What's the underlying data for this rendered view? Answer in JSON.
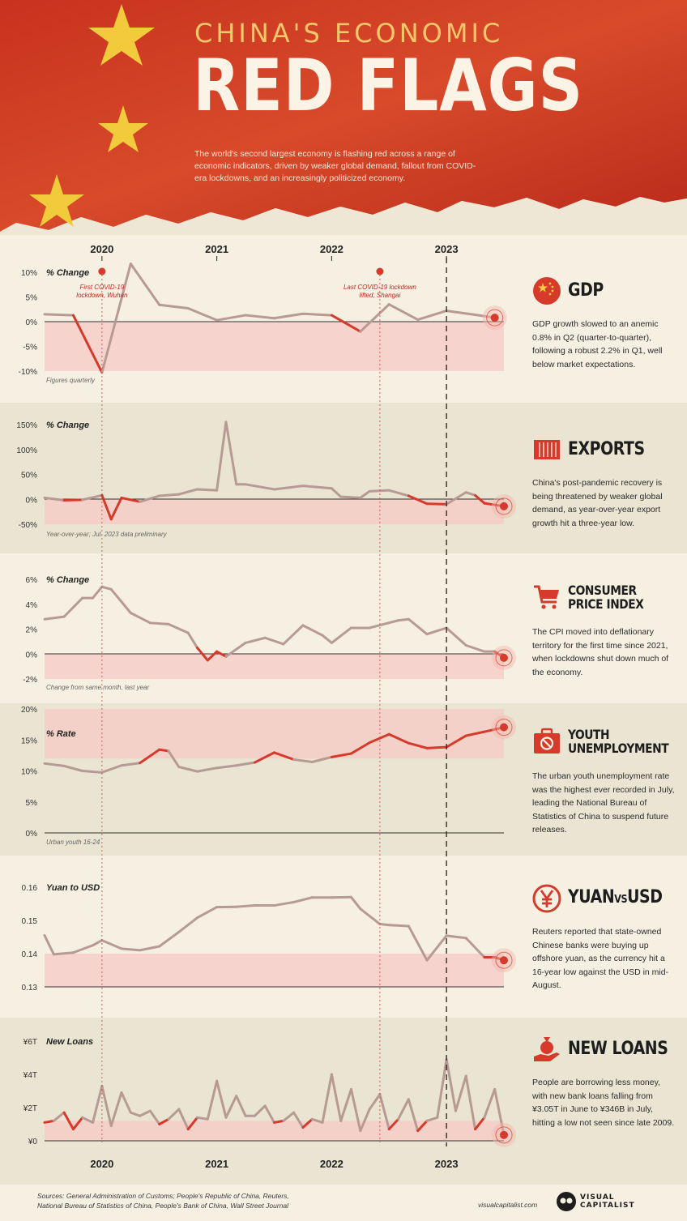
{
  "header": {
    "kicker": "CHINA'S ECONOMIC",
    "title": "RED FLAGS",
    "subtitle": "The world's second largest economy is flashing red across a range of economic indicators, driven by weaker global demand, fallout from COVID-era lockdowns, and an increasingly politicized economy."
  },
  "timeline": {
    "years_top": [
      "2020",
      "2021",
      "2022",
      "2023"
    ],
    "years_bottom": [
      "2020",
      "2021",
      "2022",
      "2023"
    ],
    "events": [
      {
        "label_line1": "First COVID-19",
        "label_line2": "lockdown, Wuhan",
        "date": 2020.0
      },
      {
        "label_line1": "Last COVID-19 lockdown",
        "label_line2": "lifted, Shangai",
        "date": 2022.42
      }
    ]
  },
  "panels": [
    {
      "id": "gdp",
      "name": "GDP",
      "desc": "GDP growth slowed to an anemic 0.8% in Q2 (quarter-to-quarter), following a robust 2.2% in Q1, well below market expectations.",
      "axis_label": "% Change",
      "note": "Figures quarterly",
      "icon": "china-flag-icon"
    },
    {
      "id": "exports",
      "name": "EXPORTS",
      "desc": "China's post-pandemic recovery is being threatened by weaker global demand, as year-over-year export growth hit a three-year low.",
      "axis_label": "% Change",
      "note": "Year-over-year; Jul. 2023 data preliminary",
      "icon": "shipping-container-icon"
    },
    {
      "id": "cpi",
      "name_line1": "CONSUMER",
      "name_line2": "PRICE INDEX",
      "desc": "The CPI moved into deflationary territory for the first time since 2021, when lockdowns shut down much of the economy.",
      "axis_label": "% Change",
      "note": "Change from same month, last year",
      "icon": "shopping-cart-icon"
    },
    {
      "id": "youth",
      "name_line1": "YOUTH",
      "name_line2": "UNEMPLOYMENT",
      "desc": "The urban youth unemployment rate was the highest ever recorded in July, leading the National Bureau of Statistics of China to suspend future releases.",
      "axis_label": "% Rate",
      "note": "Urban youth 16-24",
      "icon": "briefcase-prohibited-icon"
    },
    {
      "id": "yuan",
      "name_a": "YUAN",
      "name_vs": "VS",
      "name_b": "USD",
      "desc": "Reuters reported that state-owned Chinese banks were buying up offshore yuan, as the currency hit a 16-year low against the USD in mid-August.",
      "axis_label": "Yuan to USD",
      "note": "",
      "icon": "yen-circle-icon"
    },
    {
      "id": "loans",
      "name": "NEW LOANS",
      "desc": "People are borrowing less money, with new bank loans falling from ¥3.05T in June to ¥346B in July, hitting a low not seen since late 2009.",
      "axis_label": "New Loans",
      "note": "",
      "icon": "money-bag-hand-icon"
    }
  ],
  "chart_data": [
    {
      "type": "line",
      "id": "gdp",
      "ylabel": "% Change",
      "ylim": [
        -10,
        10
      ],
      "yticks": [
        "10%",
        "5%",
        "0%",
        "-5%",
        "-10%"
      ],
      "x": [
        2019.5,
        2019.75,
        2020.0,
        2020.25,
        2020.5,
        2020.75,
        2021.0,
        2021.25,
        2021.5,
        2021.75,
        2022.0,
        2022.25,
        2022.5,
        2022.75,
        2023.0,
        2023.25,
        2023.42
      ],
      "values": [
        1.5,
        1.3,
        -10.3,
        11.7,
        3.4,
        2.7,
        0.3,
        1.3,
        0.7,
        1.6,
        1.3,
        -2.0,
        3.5,
        0.4,
        2.2,
        1.4,
        0.8
      ]
    },
    {
      "type": "line",
      "id": "exports",
      "ylabel": "% Change",
      "ylim": [
        -50,
        150
      ],
      "yticks": [
        "150%",
        "100%",
        "50%",
        "0%",
        "-50%"
      ],
      "x": [
        2019.5,
        2019.67,
        2019.83,
        2020.0,
        2020.08,
        2020.17,
        2020.33,
        2020.5,
        2020.67,
        2020.83,
        2021.0,
        2021.08,
        2021.17,
        2021.25,
        2021.5,
        2021.75,
        2022.0,
        2022.08,
        2022.25,
        2022.33,
        2022.5,
        2022.67,
        2022.83,
        2023.0,
        2023.17,
        2023.25,
        2023.33,
        2023.5
      ],
      "values": [
        3,
        -2,
        -1,
        8,
        -40,
        3,
        -5,
        7,
        10,
        20,
        18,
        155,
        30,
        30,
        20,
        27,
        22,
        5,
        3,
        16,
        18,
        7,
        -9,
        -10,
        14,
        8,
        -8,
        -14
      ]
    },
    {
      "type": "line",
      "id": "cpi",
      "ylabel": "% Change",
      "ylim": [
        -2,
        6
      ],
      "yticks": [
        "6%",
        "4%",
        "2%",
        "0%",
        "-2%"
      ],
      "x": [
        2019.5,
        2019.67,
        2019.83,
        2019.92,
        2020.0,
        2020.08,
        2020.25,
        2020.42,
        2020.58,
        2020.75,
        2020.83,
        2020.92,
        2021.0,
        2021.08,
        2021.25,
        2021.42,
        2021.58,
        2021.75,
        2021.92,
        2022.0,
        2022.17,
        2022.33,
        2022.58,
        2022.67,
        2022.83,
        2023.0,
        2023.17,
        2023.33,
        2023.42,
        2023.5
      ],
      "values": [
        2.8,
        3.0,
        4.5,
        4.5,
        5.4,
        5.2,
        3.3,
        2.5,
        2.4,
        1.7,
        0.5,
        -0.5,
        0.2,
        -0.2,
        0.9,
        1.3,
        0.8,
        2.3,
        1.5,
        0.9,
        2.1,
        2.1,
        2.7,
        2.8,
        1.6,
        2.1,
        0.7,
        0.2,
        0.2,
        -0.3
      ]
    },
    {
      "type": "line",
      "id": "youth",
      "ylabel": "% Rate",
      "ylim": [
        0,
        25
      ],
      "yticks": [
        "20%",
        "15%",
        "10%",
        "5%",
        "0%"
      ],
      "x": [
        2019.5,
        2019.67,
        2019.83,
        2020.0,
        2020.17,
        2020.33,
        2020.5,
        2020.58,
        2020.67,
        2020.83,
        2021.0,
        2021.17,
        2021.33,
        2021.5,
        2021.67,
        2021.83,
        2022.0,
        2022.17,
        2022.33,
        2022.5,
        2022.67,
        2022.83,
        2023.0,
        2023.17,
        2023.33,
        2023.5
      ],
      "values": [
        14,
        13.5,
        12.5,
        12.2,
        13.6,
        14.1,
        16.8,
        16.5,
        13.3,
        12.4,
        13.1,
        13.6,
        14.2,
        16.2,
        14.8,
        14.3,
        15.3,
        16,
        18.2,
        19.9,
        18.1,
        17.1,
        17.3,
        19.6,
        20.4,
        21.3
      ]
    },
    {
      "type": "line",
      "id": "yuan",
      "ylabel": "Yuan to USD",
      "ylim": [
        0.13,
        0.16
      ],
      "yticks": [
        "0.16",
        "0.15",
        "0.14",
        "0.13"
      ],
      "x": [
        2019.5,
        2019.58,
        2019.75,
        2019.92,
        2020.0,
        2020.17,
        2020.33,
        2020.5,
        2020.67,
        2020.83,
        2021.0,
        2021.17,
        2021.33,
        2021.5,
        2021.67,
        2021.83,
        2022.0,
        2022.17,
        2022.25,
        2022.42,
        2022.5,
        2022.67,
        2022.83,
        2023.0,
        2023.17,
        2023.33,
        2023.42,
        2023.5
      ],
      "values": [
        0.1455,
        0.1398,
        0.1403,
        0.1425,
        0.144,
        0.1415,
        0.141,
        0.1422,
        0.1465,
        0.1508,
        0.154,
        0.1541,
        0.1545,
        0.1545,
        0.1555,
        0.1569,
        0.1569,
        0.157,
        0.1535,
        0.1489,
        0.1486,
        0.1483,
        0.138,
        0.1454,
        0.1447,
        0.1389,
        0.1389,
        0.138
      ]
    },
    {
      "type": "line",
      "id": "loans",
      "ylabel": "New Loans",
      "ylim": [
        0,
        6
      ],
      "yticks": [
        "¥6T",
        "¥4T",
        "¥2T",
        "¥0"
      ],
      "x": [
        2019.5,
        2019.58,
        2019.67,
        2019.75,
        2019.83,
        2019.92,
        2020.0,
        2020.08,
        2020.17,
        2020.25,
        2020.33,
        2020.42,
        2020.5,
        2020.58,
        2020.67,
        2020.75,
        2020.83,
        2020.92,
        2021.0,
        2021.08,
        2021.17,
        2021.25,
        2021.33,
        2021.42,
        2021.5,
        2021.58,
        2021.67,
        2021.75,
        2021.83,
        2021.92,
        2022.0,
        2022.08,
        2022.17,
        2022.25,
        2022.33,
        2022.42,
        2022.5,
        2022.58,
        2022.67,
        2022.75,
        2022.83,
        2022.92,
        2023.0,
        2023.08,
        2023.17,
        2023.25,
        2023.33,
        2023.42,
        2023.5
      ],
      "values": [
        1.1,
        1.2,
        1.7,
        0.7,
        1.4,
        1.1,
        3.3,
        0.9,
        2.9,
        1.7,
        1.5,
        1.8,
        1.0,
        1.3,
        1.9,
        0.7,
        1.4,
        1.3,
        3.6,
        1.4,
        2.7,
        1.5,
        1.5,
        2.1,
        1.1,
        1.2,
        1.7,
        0.8,
        1.3,
        1.1,
        4.0,
        1.2,
        3.1,
        0.6,
        1.9,
        2.8,
        0.7,
        1.3,
        2.5,
        0.6,
        1.2,
        1.4,
        4.9,
        1.8,
        3.9,
        0.7,
        1.4,
        3.1,
        0.35
      ]
    }
  ],
  "footer": {
    "sources_line1": "Sources: General Administration of Customs; People's Republic of China, Reuters,",
    "sources_line2": "National Bureau of Statistics of China, People's Bank of China, Wall Street Journal",
    "site": "visualcapitalist.com",
    "brand_line1": "VISUAL",
    "brand_line2": "CAPITALIST"
  },
  "colors": {
    "red": "#d63a2b",
    "dark_red": "#c0281c",
    "muted": "#b89a94",
    "band_a": "#f6f0e2",
    "band_b": "#e9e5d2",
    "flag_red": "#d03a22",
    "star": "#f4d03f"
  }
}
